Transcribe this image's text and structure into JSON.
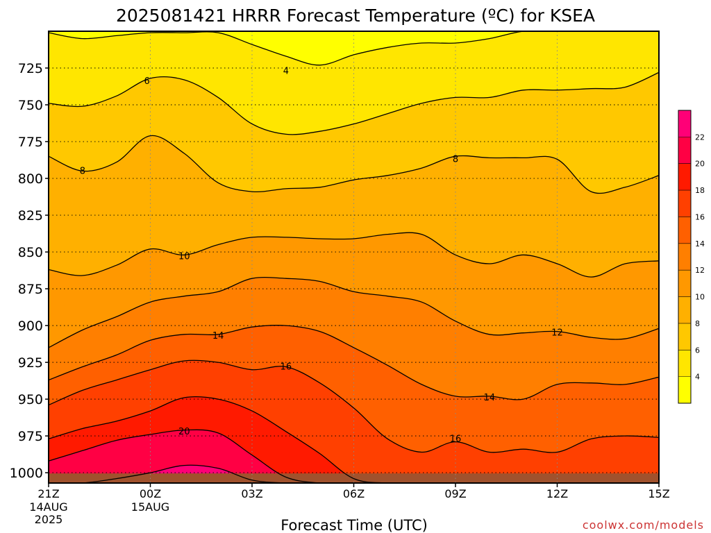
{
  "chart_data": {
    "type": "contour-filled",
    "title": "2025081421 HRRR Forecast Temperature (ºC) for KSEA",
    "xlabel": "Forecast Time (UTC)",
    "ylabel": "",
    "credit": "coolwx.com/models",
    "x_range_hours": [
      0,
      18
    ],
    "ylim_hpa": [
      1007,
      700
    ],
    "y_ticks": [
      725,
      750,
      775,
      800,
      825,
      850,
      875,
      900,
      925,
      950,
      975,
      1000
    ],
    "x_ticks": [
      {
        "hour": 0,
        "label": "21Z",
        "sub": [
          "14AUG",
          "2025"
        ]
      },
      {
        "hour": 3,
        "label": "00Z",
        "sub": [
          "15AUG"
        ]
      },
      {
        "hour": 6,
        "label": "03Z",
        "sub": []
      },
      {
        "hour": 9,
        "label": "06Z",
        "sub": []
      },
      {
        "hour": 12,
        "label": "09Z",
        "sub": []
      },
      {
        "hour": 15,
        "label": "12Z",
        "sub": []
      },
      {
        "hour": 18,
        "label": "15Z",
        "sub": []
      }
    ],
    "grid": true,
    "surface_color": "#a0522d",
    "colorbar": {
      "placement": "right",
      "levels": [
        4,
        6,
        8,
        10,
        12,
        14,
        16,
        18,
        20,
        22
      ],
      "colors": [
        "#ffff00",
        "#ffe600",
        "#ffc800",
        "#ffb000",
        "#ff9800",
        "#ff7f00",
        "#ff6000",
        "#ff4000",
        "#ff1a00",
        "#ff0044",
        "#ff0077"
      ]
    },
    "contour_hours": [
      0,
      1,
      2,
      3,
      4,
      5,
      6,
      7,
      8,
      9,
      10,
      11,
      12,
      13,
      14,
      15,
      16,
      17,
      18
    ],
    "contours": [
      {
        "value": 4,
        "label_hour": 7,
        "p": [
          701,
          705,
          703,
          701,
          701,
          701,
          709,
          717,
          723,
          716,
          711,
          708,
          708,
          705,
          700,
          700,
          700,
          700,
          700
        ]
      },
      {
        "value": 6,
        "label_hour": 3,
        "p": [
          749,
          751,
          744,
          732,
          733,
          745,
          763,
          770,
          768,
          763,
          756,
          749,
          745,
          745,
          740,
          740,
          739,
          738,
          728
        ]
      },
      {
        "value": 8,
        "label_hour": 1,
        "p": [
          785,
          795,
          789,
          771,
          783,
          803,
          809,
          807,
          806,
          801,
          798,
          793,
          785,
          786,
          786,
          787,
          809,
          806,
          798
        ]
      },
      {
        "value": 10,
        "label_hour": 4,
        "p": [
          862,
          866,
          859,
          848,
          852,
          845,
          840,
          840,
          841,
          841,
          838,
          838,
          852,
          858,
          852,
          858,
          867,
          858,
          856
        ]
      },
      {
        "value": 12,
        "label_hour": 15,
        "p": [
          915,
          903,
          894,
          884,
          880,
          877,
          868,
          868,
          870,
          877,
          880,
          884,
          897,
          906,
          905,
          904,
          908,
          909,
          902
        ]
      },
      {
        "value": 14,
        "label_hour": 5,
        "p": [
          937,
          928,
          920,
          910,
          906,
          906,
          901,
          900,
          904,
          915,
          927,
          940,
          948,
          948,
          950,
          940,
          939,
          940,
          935
        ]
      },
      {
        "value": 16,
        "label_hour": 7,
        "p": [
          954,
          944,
          937,
          930,
          924,
          925,
          930,
          928,
          939,
          956,
          977,
          986,
          979,
          986,
          984,
          986,
          977,
          975,
          976
        ]
      },
      {
        "value": 18,
        "label_hour": 0,
        "p": [
          977,
          970,
          965,
          958,
          949,
          950,
          958,
          972,
          987,
          1004,
          1007,
          1007,
          1007,
          1007,
          1007,
          1007,
          1007,
          1007,
          1007
        ]
      },
      {
        "value": 20,
        "label_hour": 4,
        "p": [
          992,
          985,
          978,
          974,
          971,
          973,
          988,
          1003,
          1007,
          1007,
          1007,
          1007,
          1007,
          1007,
          1007,
          1007,
          1007,
          1007,
          1007
        ]
      },
      {
        "value": 22,
        "label_hour": 4,
        "p": [
          1007,
          1007,
          1004,
          1000,
          995,
          997,
          1005,
          1007,
          1007,
          1007,
          1007,
          1007,
          1007,
          1007,
          1007,
          1007,
          1007,
          1007,
          1007
        ]
      }
    ],
    "contour_labels": [
      {
        "value": "4",
        "hour": 7.0,
        "p": 727
      },
      {
        "value": "6",
        "hour": 2.9,
        "p": 734
      },
      {
        "value": "8",
        "hour": 1.0,
        "p": 795
      },
      {
        "value": "8",
        "hour": 12.0,
        "p": 787
      },
      {
        "value": "10",
        "hour": 4.0,
        "p": 853
      },
      {
        "value": "12",
        "hour": 15.0,
        "p": 905
      },
      {
        "value": "14",
        "hour": 5.0,
        "p": 907
      },
      {
        "value": "14",
        "hour": 13.0,
        "p": 949
      },
      {
        "value": "16",
        "hour": 7.0,
        "p": 928
      },
      {
        "value": "16",
        "hour": 12.0,
        "p": 977
      },
      {
        "value": "20",
        "hour": 4.0,
        "p": 972
      }
    ]
  }
}
